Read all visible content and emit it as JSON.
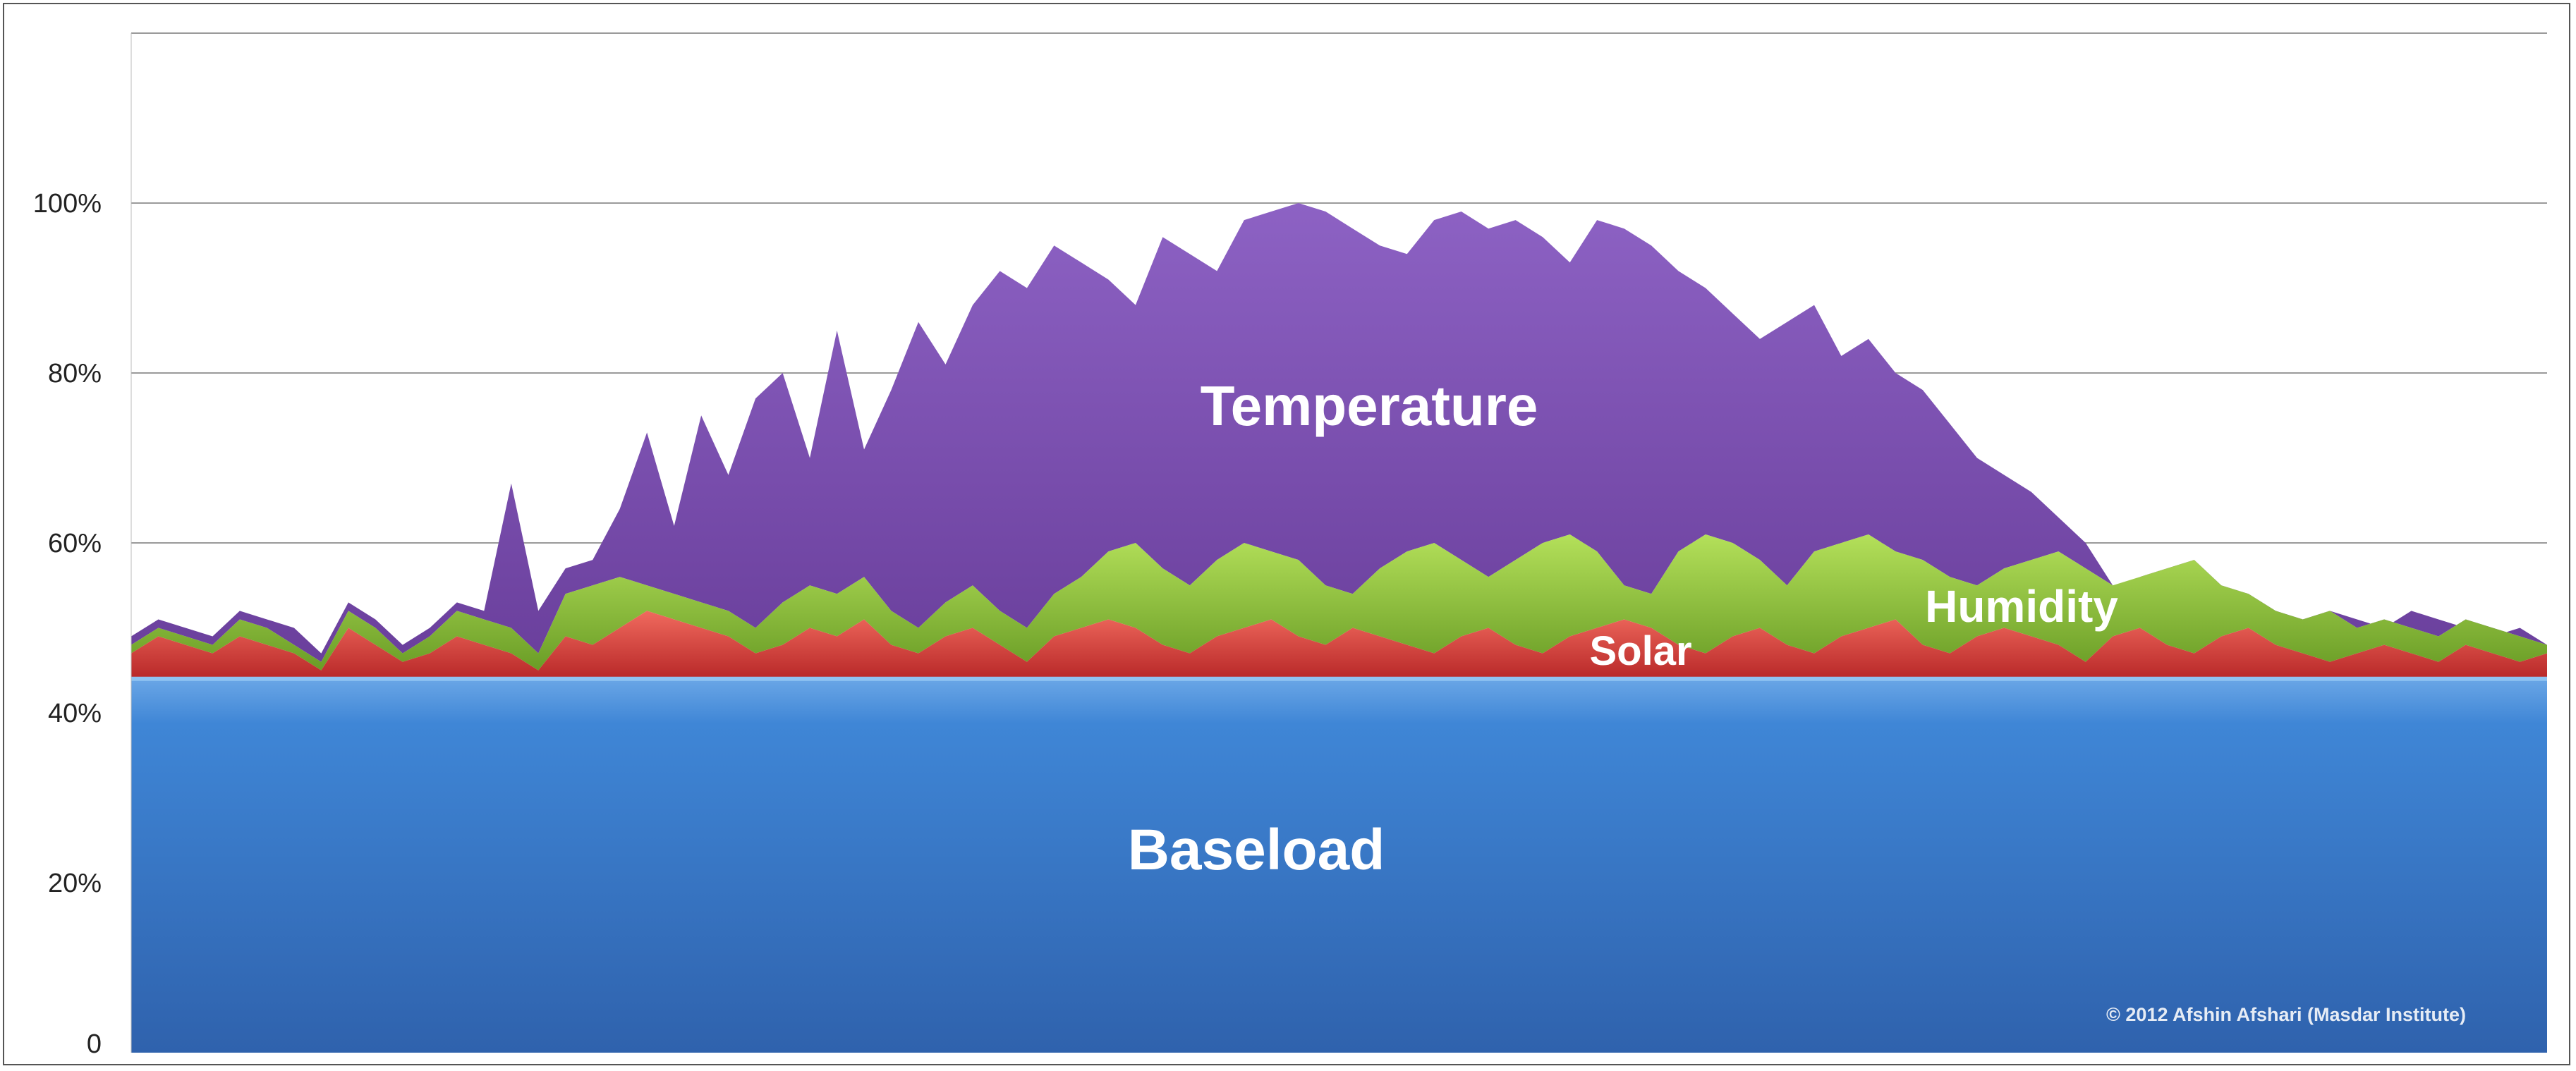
{
  "chart_data": {
    "type": "area",
    "stacked": true,
    "y_ticks": [
      "0",
      "20%",
      "40%",
      "60%",
      "80%",
      "100%"
    ],
    "ylim": [
      0,
      120
    ],
    "grid": true,
    "series": [
      {
        "name": "Baseload",
        "color": "#3a78c4"
      },
      {
        "name": "Solar",
        "color": "#d23a3a"
      },
      {
        "name": "Humidity",
        "color": "#8cc63f"
      },
      {
        "name": "Temperature",
        "color": "#7e57b0"
      }
    ],
    "baseload_value": 44,
    "solar_top": [
      47,
      49,
      48,
      47,
      49,
      48,
      47,
      45,
      50,
      48,
      46,
      47,
      49,
      48,
      47,
      45,
      49,
      48,
      50,
      52,
      51,
      50,
      49,
      47,
      48,
      50,
      49,
      51,
      48,
      47,
      49,
      50,
      48,
      46,
      49,
      50,
      51,
      50,
      48,
      47,
      49,
      50,
      51,
      49,
      48,
      50,
      49,
      48,
      47,
      49,
      50,
      48,
      47,
      49,
      50,
      51,
      50,
      48,
      47,
      49,
      50,
      48,
      47,
      49,
      50,
      51,
      48,
      47,
      49,
      50,
      49,
      48,
      46,
      49,
      50,
      48,
      47,
      49,
      50,
      48,
      47,
      46,
      47,
      48,
      47,
      46,
      48,
      47,
      46,
      47
    ],
    "humidity_top": [
      48,
      50,
      49,
      48,
      51,
      50,
      48,
      46,
      52,
      50,
      47,
      49,
      52,
      51,
      50,
      47,
      54,
      55,
      56,
      55,
      54,
      53,
      52,
      50,
      53,
      55,
      54,
      56,
      52,
      50,
      53,
      55,
      52,
      50,
      54,
      56,
      59,
      60,
      57,
      55,
      58,
      60,
      59,
      58,
      55,
      54,
      57,
      59,
      60,
      58,
      56,
      58,
      60,
      61,
      59,
      55,
      54,
      59,
      61,
      60,
      58,
      55,
      59,
      60,
      61,
      59,
      58,
      56,
      55,
      57,
      58,
      59,
      57,
      55,
      56,
      57,
      58,
      55,
      54,
      52,
      51,
      52,
      50,
      51,
      50,
      49,
      51,
      50,
      49,
      48
    ],
    "temperature_top": [
      49,
      51,
      50,
      49,
      52,
      51,
      50,
      47,
      53,
      51,
      48,
      50,
      53,
      52,
      67,
      52,
      57,
      58,
      64,
      73,
      62,
      75,
      68,
      77,
      80,
      70,
      85,
      71,
      78,
      86,
      81,
      88,
      92,
      90,
      95,
      93,
      91,
      88,
      96,
      94,
      92,
      98,
      99,
      100,
      99,
      97,
      95,
      94,
      98,
      99,
      97,
      98,
      96,
      93,
      98,
      97,
      95,
      92,
      90,
      87,
      84,
      86,
      88,
      82,
      84,
      80,
      78,
      74,
      70,
      68,
      66,
      63,
      60,
      55,
      56,
      54,
      55,
      53,
      52,
      51,
      50,
      52,
      51,
      50,
      52,
      51,
      50,
      49,
      50,
      48
    ],
    "annotations": [
      "Temperature",
      "Humidity",
      "Solar",
      "Baseload"
    ],
    "credit": "© 2012 Afshin Afshari (Masdar  Institute)"
  }
}
